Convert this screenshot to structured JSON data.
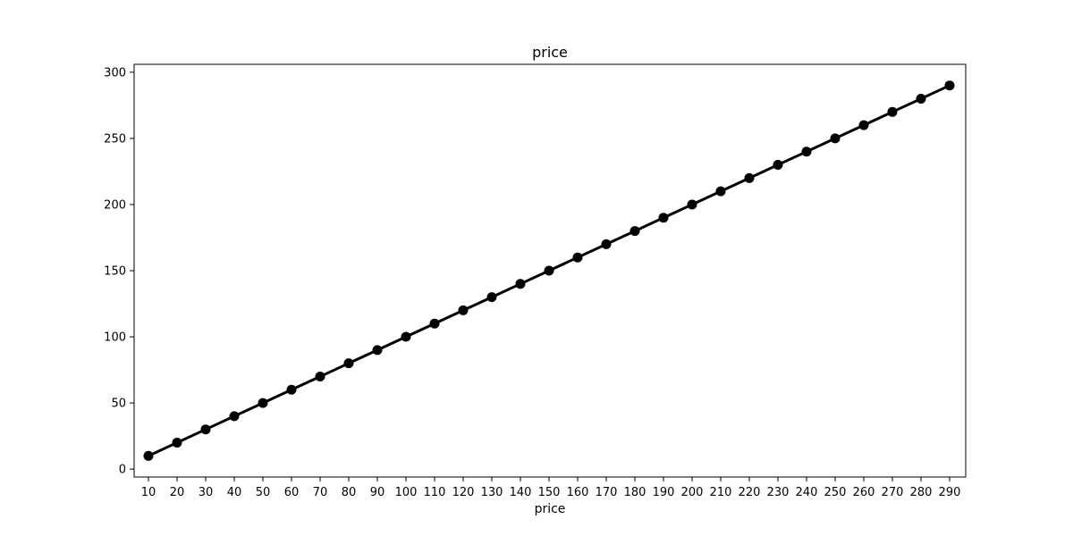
{
  "chart_data": {
    "type": "line",
    "title": "price",
    "xlabel": "price",
    "ylabel": "",
    "categories": [
      "10",
      "20",
      "30",
      "40",
      "50",
      "60",
      "70",
      "80",
      "90",
      "100",
      "110",
      "120",
      "130",
      "140",
      "150",
      "160",
      "170",
      "180",
      "190",
      "200",
      "210",
      "220",
      "230",
      "240",
      "250",
      "260",
      "270",
      "280",
      "290"
    ],
    "series": [
      {
        "values": [
          10,
          20,
          30,
          40,
          50,
          60,
          70,
          80,
          90,
          100,
          110,
          120,
          130,
          140,
          150,
          160,
          170,
          180,
          190,
          200,
          210,
          220,
          230,
          240,
          250,
          260,
          270,
          280,
          290
        ],
        "color": "#000000",
        "marker": "circle"
      }
    ],
    "ylim": [
      -6,
      306
    ],
    "yticks": [
      0,
      50,
      100,
      150,
      200,
      250,
      300
    ],
    "grid": false,
    "legend": "none"
  }
}
